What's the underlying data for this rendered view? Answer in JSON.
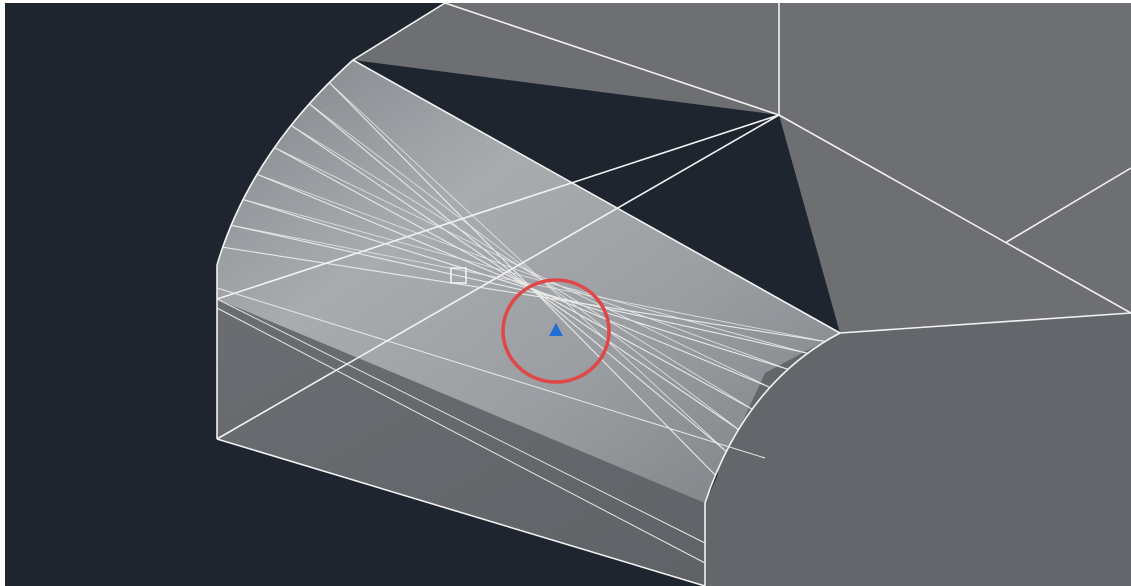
{
  "viewport": {
    "background_color": "#1f252e",
    "solid_face_color": "#6d6f72",
    "solid_face_dark_color": "#63666a",
    "fillet_face_color": "#9ea1a4",
    "edge_color": "#f2f2f2",
    "tessellation_line_color": "#e9e9e9"
  },
  "overlays": {
    "pickbox_icon": "square-pickbox-icon",
    "grip_icon": "triangle-grip-icon",
    "grip_color": "#1f6fd6",
    "highlight_circle_color": "#e04848"
  }
}
